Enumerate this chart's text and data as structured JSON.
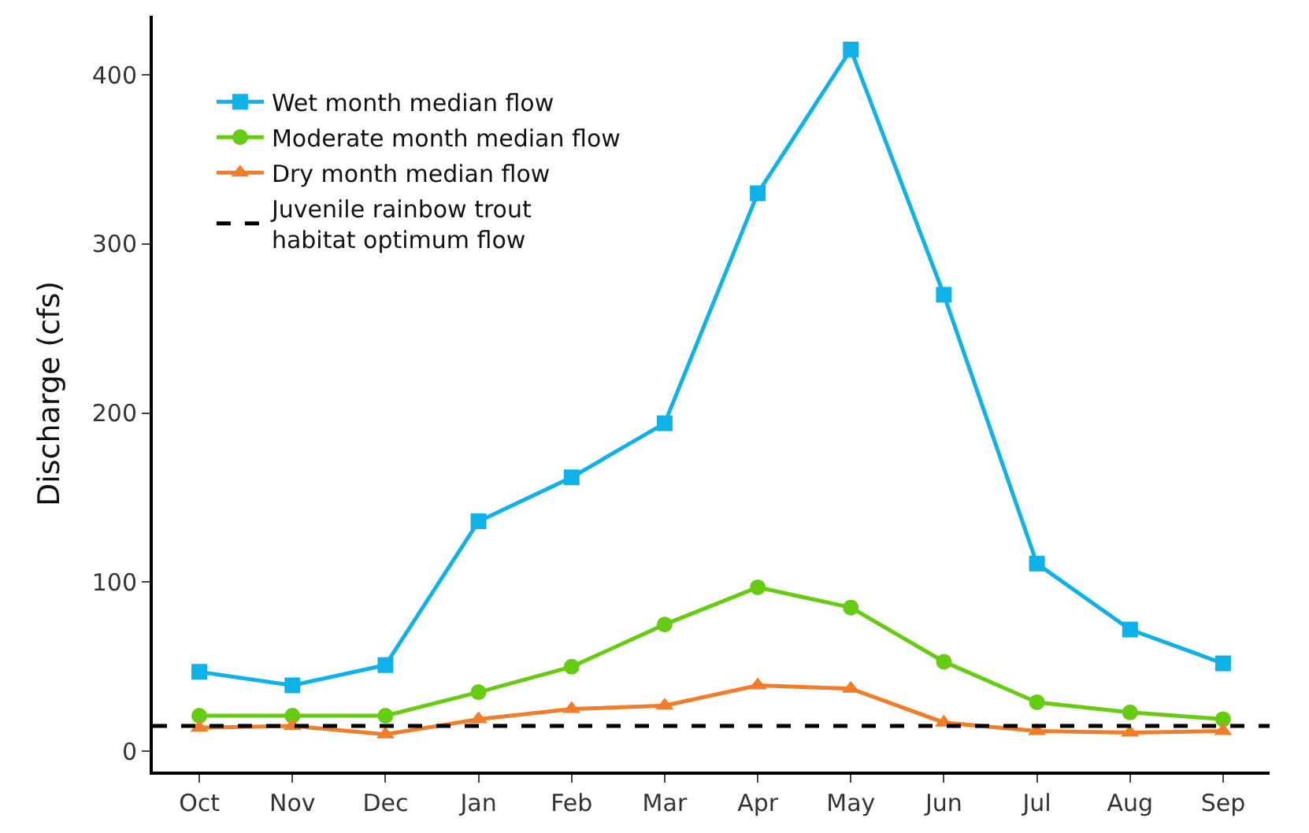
{
  "chart_data": {
    "type": "line",
    "ylabel": "Discharge (cfs)",
    "categories": [
      "Oct",
      "Nov",
      "Dec",
      "Jan",
      "Feb",
      "Mar",
      "Apr",
      "May",
      "Jun",
      "Jul",
      "Aug",
      "Sep"
    ],
    "series": [
      {
        "name": "Wet month median flow",
        "color": "#0fb2e8",
        "marker": "square",
        "values": [
          47,
          39,
          51,
          136,
          162,
          194,
          330,
          415,
          270,
          111,
          72,
          52
        ]
      },
      {
        "name": "Moderate month median flow",
        "color": "#66cc11",
        "marker": "circle",
        "values": [
          21,
          21,
          21,
          35,
          50,
          75,
          97,
          85,
          53,
          29,
          23,
          19
        ]
      },
      {
        "name": "Dry month median flow",
        "color": "#f07d2a",
        "marker": "triangle",
        "values": [
          14,
          15,
          10,
          19,
          25,
          27,
          39,
          37,
          17,
          12,
          11,
          12
        ]
      }
    ],
    "ref_lines": [
      {
        "axis": "y",
        "value": 15,
        "label": "Juvenile rainbow trout\nhabitat optimum flow",
        "color": "#000000",
        "line_style": "dashed"
      }
    ],
    "ylim": [
      -12,
      435
    ],
    "yticks": [
      0,
      100,
      200,
      300,
      400
    ],
    "legend": "top left",
    "line_style": "solid"
  }
}
